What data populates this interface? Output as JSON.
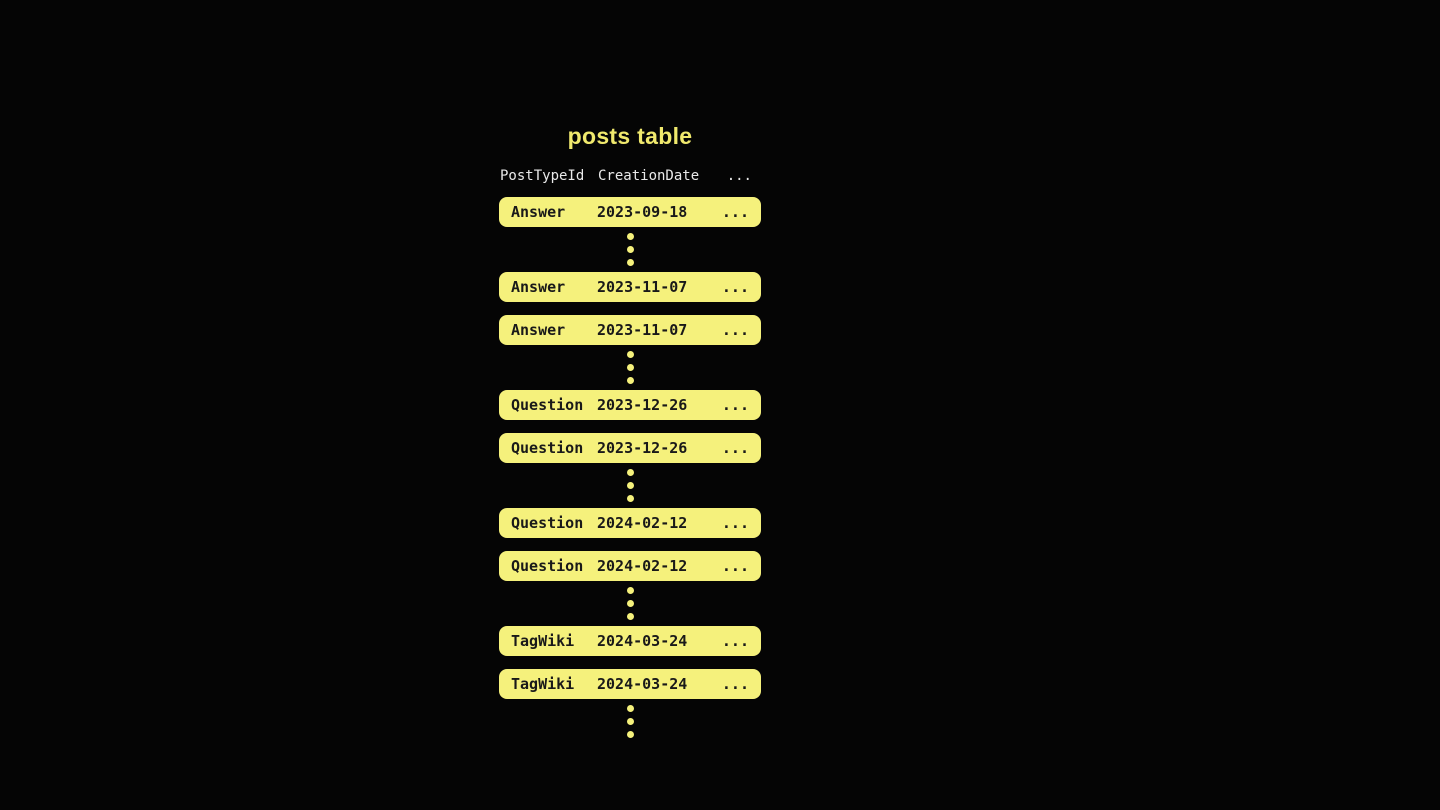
{
  "title": "posts table",
  "columns": {
    "post_type": "PostTypeId",
    "creation_date": "CreationDate",
    "more": "..."
  },
  "row_more": "...",
  "dots_per_gap": 3,
  "groups": [
    {
      "rows": [
        {
          "type": "Answer",
          "date": "2023-09-18"
        }
      ]
    },
    {
      "rows": [
        {
          "type": "Answer",
          "date": "2023-11-07"
        },
        {
          "type": "Answer",
          "date": "2023-11-07"
        }
      ]
    },
    {
      "rows": [
        {
          "type": "Question",
          "date": "2023-12-26"
        },
        {
          "type": "Question",
          "date": "2023-12-26"
        }
      ]
    },
    {
      "rows": [
        {
          "type": "Question",
          "date": "2024-02-12"
        },
        {
          "type": "Question",
          "date": "2024-02-12"
        }
      ]
    },
    {
      "rows": [
        {
          "type": "TagWiki",
          "date": "2024-03-24"
        },
        {
          "type": "TagWiki",
          "date": "2024-03-24"
        }
      ]
    }
  ],
  "colors": {
    "background": "#050505",
    "row_fill": "#f5f17c",
    "title_text": "#f0e96d",
    "header_text": "#e9e9e9",
    "row_text": "#191919"
  }
}
